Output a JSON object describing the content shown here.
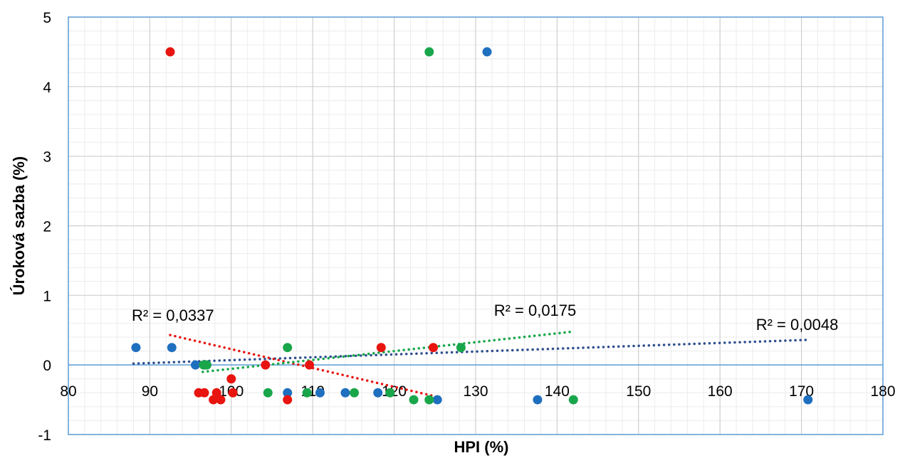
{
  "chart_data": {
    "type": "scatter",
    "xlabel": "HPI (%)",
    "ylabel": "Úroková sazba (%)",
    "xlim": [
      80,
      180
    ],
    "ylim": [
      -1,
      5
    ],
    "x_major_step": 10,
    "y_major_step": 1,
    "x_minor_step": 2,
    "y_minor_step": 0.2,
    "grid": true,
    "x_axis_crosses_at": 0,
    "x_tick_labels": [
      "80",
      "90",
      "100",
      "110",
      "120",
      "130",
      "140",
      "150",
      "160",
      "170",
      "180"
    ],
    "y_tick_labels": [
      "-1",
      "0",
      "1",
      "2",
      "3",
      "4",
      "5"
    ],
    "series": [
      {
        "color": "#1f6fbf",
        "trend_color": "#2f4f8f",
        "points": [
          [
            88.3,
            0.25
          ],
          [
            92.7,
            0.25
          ],
          [
            95.6,
            0.0
          ],
          [
            96.8,
            0.0
          ],
          [
            106.9,
            -0.4
          ],
          [
            110.9,
            -0.4
          ],
          [
            114.0,
            -0.4
          ],
          [
            118.0,
            -0.4
          ],
          [
            125.3,
            -0.5
          ],
          [
            131.4,
            4.5
          ],
          [
            137.6,
            -0.5
          ],
          [
            170.8,
            -0.5
          ]
        ],
        "trend": {
          "x": [
            88.0,
            170.5
          ],
          "y": [
            0.02,
            0.36
          ],
          "label": "R² = 0,0048"
        }
      },
      {
        "color": "#e8140f",
        "trend_color": "#e8140f",
        "points": [
          [
            92.5,
            4.5
          ],
          [
            96.0,
            -0.4
          ],
          [
            96.7,
            -0.4
          ],
          [
            97.8,
            -0.5
          ],
          [
            98.2,
            -0.4
          ],
          [
            98.7,
            -0.5
          ],
          [
            100.0,
            -0.2
          ],
          [
            100.2,
            -0.4
          ],
          [
            104.2,
            0.0
          ],
          [
            106.9,
            -0.5
          ],
          [
            109.6,
            0.0
          ],
          [
            118.4,
            0.25
          ],
          [
            124.8,
            0.25
          ]
        ],
        "trend": {
          "x": [
            92.5,
            125.0
          ],
          "y": [
            0.43,
            -0.45
          ],
          "label": "R² = 0,0337"
        }
      },
      {
        "color": "#19a64a",
        "trend_color": "#19a64a",
        "points": [
          [
            96.6,
            0.0
          ],
          [
            97.0,
            0.0
          ],
          [
            104.5,
            -0.4
          ],
          [
            106.9,
            0.25
          ],
          [
            109.3,
            -0.4
          ],
          [
            115.1,
            -0.4
          ],
          [
            119.5,
            -0.4
          ],
          [
            122.4,
            -0.5
          ],
          [
            124.3,
            -0.5
          ],
          [
            124.3,
            4.5
          ],
          [
            128.2,
            0.25
          ],
          [
            142.0,
            -0.5
          ]
        ],
        "trend": {
          "x": [
            96.5,
            142.0
          ],
          "y": [
            -0.1,
            0.48
          ],
          "label": "R² = 0,0175"
        }
      }
    ]
  }
}
